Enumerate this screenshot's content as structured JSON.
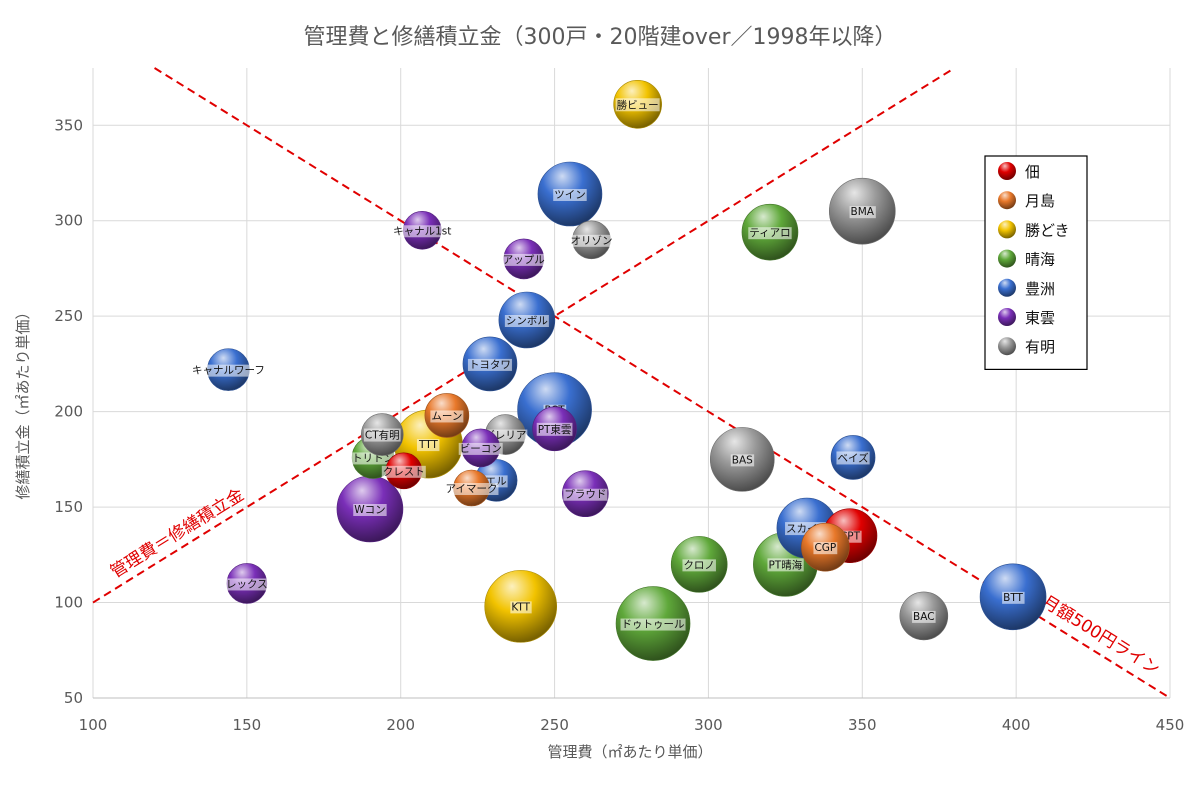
{
  "chart_data": {
    "type": "bubble",
    "title": "管理費と修繕積立金（300戸・20階建over／1998年以降）",
    "xlabel": "管理費（㎡あたり単価）",
    "ylabel": "修繕積立金（㎡あたり単価）",
    "xlim": [
      100,
      450
    ],
    "ylim": [
      50,
      380
    ],
    "x_ticks": [
      100,
      150,
      200,
      250,
      300,
      350,
      400,
      450
    ],
    "y_ticks": [
      50,
      100,
      150,
      200,
      250,
      300,
      350
    ],
    "grid": true,
    "legend_position": "right",
    "series": [
      {
        "name": "佃",
        "color": "#e00000",
        "points": [
          {
            "label": "クレスト",
            "x": 201,
            "y": 169,
            "size": 18
          },
          {
            "label": "CPT",
            "x": 346,
            "y": 135,
            "size": 27
          }
        ]
      },
      {
        "name": "月島",
        "color": "#e8782a",
        "points": [
          {
            "label": "ムーン",
            "x": 215,
            "y": 198,
            "size": 22
          },
          {
            "label": "アイマーク",
            "x": 223,
            "y": 160,
            "size": 18
          },
          {
            "label": "CGP",
            "x": 338,
            "y": 129,
            "size": 24
          }
        ]
      },
      {
        "name": "勝どき",
        "color": "#f2c300",
        "points": [
          {
            "label": "TTT",
            "x": 209,
            "y": 183,
            "size": 34
          },
          {
            "label": "勝ビュー",
            "x": 277,
            "y": 361,
            "size": 24
          },
          {
            "label": "KTT",
            "x": 239,
            "y": 98,
            "size": 36
          }
        ]
      },
      {
        "name": "晴海",
        "color": "#5fa83a",
        "points": [
          {
            "label": "トリトン",
            "x": 191,
            "y": 176,
            "size": 21
          },
          {
            "label": "ティアロ",
            "x": 320,
            "y": 294,
            "size": 28
          },
          {
            "label": "クロノ",
            "x": 297,
            "y": 120,
            "size": 28
          },
          {
            "label": "ドゥトゥール",
            "x": 282,
            "y": 89,
            "size": 37
          },
          {
            "label": "PT晴海",
            "x": 325,
            "y": 120,
            "size": 32
          }
        ]
      },
      {
        "name": "豊洲",
        "color": "#3a6fd0",
        "points": [
          {
            "label": "キャナルワーフ",
            "x": 144,
            "y": 222,
            "size": 21
          },
          {
            "label": "ツイン",
            "x": 255,
            "y": 314,
            "size": 32
          },
          {
            "label": "シンボル",
            "x": 241,
            "y": 248,
            "size": 28
          },
          {
            "label": "トヨタワ",
            "x": 229,
            "y": 225,
            "size": 27
          },
          {
            "label": "PCT",
            "x": 250,
            "y": 201,
            "size": 37
          },
          {
            "label": "エル",
            "x": 231,
            "y": 164,
            "size": 21
          },
          {
            "label": "ベイズ",
            "x": 347,
            "y": 176,
            "size": 22
          },
          {
            "label": "スカイズ",
            "x": 332,
            "y": 139,
            "size": 30
          },
          {
            "label": "BTT",
            "x": 399,
            "y": 103,
            "size": 33
          }
        ]
      },
      {
        "name": "東雲",
        "color": "#7a2fb8",
        "points": [
          {
            "label": "キャナル1st",
            "x": 207,
            "y": 295,
            "size": 19
          },
          {
            "label": "アップル",
            "x": 240,
            "y": 280,
            "size": 20
          },
          {
            "label": "PT東雲",
            "x": 250,
            "y": 191,
            "size": 22
          },
          {
            "label": "ビーコン",
            "x": 226,
            "y": 181,
            "size": 19
          },
          {
            "label": "プラウド",
            "x": 260,
            "y": 157,
            "size": 23
          },
          {
            "label": "Wコン",
            "x": 190,
            "y": 149,
            "size": 33
          },
          {
            "label": "レックス",
            "x": 150,
            "y": 110,
            "size": 20
          }
        ]
      },
      {
        "name": "有明",
        "color": "#9a9a9a",
        "points": [
          {
            "label": "オリゾン",
            "x": 262,
            "y": 290,
            "size": 19
          },
          {
            "label": "ガレリア",
            "x": 234,
            "y": 188,
            "size": 20
          },
          {
            "label": "CT有明",
            "x": 194,
            "y": 188,
            "size": 21
          },
          {
            "label": "BMA",
            "x": 350,
            "y": 305,
            "size": 33
          },
          {
            "label": "BAS",
            "x": 311,
            "y": 175,
            "size": 32
          },
          {
            "label": "BAC",
            "x": 370,
            "y": 93,
            "size": 24
          }
        ]
      }
    ],
    "reference_lines": [
      {
        "label": "管理費＝修繕積立金",
        "from": [
          100,
          100
        ],
        "to": [
          380,
          380
        ],
        "color": "#e00000",
        "style": "dashed"
      },
      {
        "label": "月額500円ライン",
        "from": [
          120,
          380
        ],
        "to": [
          450,
          50
        ],
        "color": "#e00000",
        "style": "dashed"
      }
    ]
  }
}
